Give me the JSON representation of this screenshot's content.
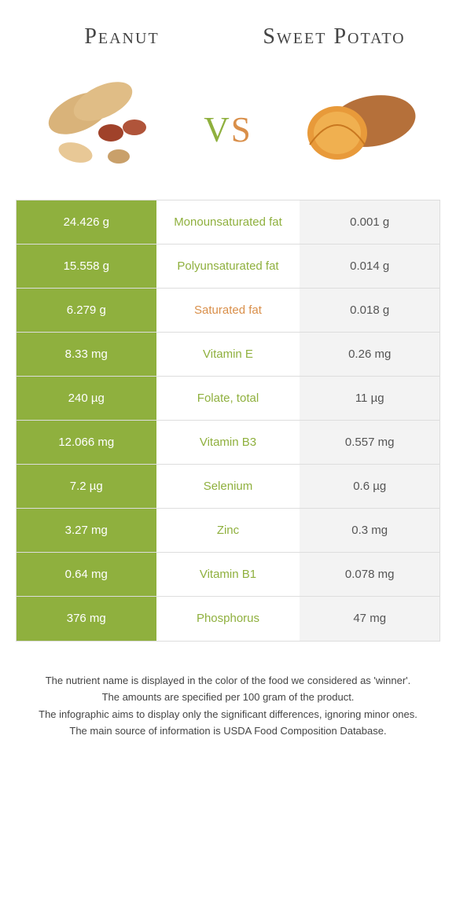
{
  "header": {
    "left_title": "Peanut",
    "right_title": "Sweet Potato",
    "vs_v": "v",
    "vs_s": "s"
  },
  "colors": {
    "peanut": "#8fb03e",
    "sweetpotato": "#d98f4a",
    "right_bg": "#f3f3f3",
    "border": "#dddddd",
    "text": "#444444"
  },
  "table": {
    "rows": [
      {
        "left": "24.426 g",
        "label": "Monounsaturated fat",
        "right": "0.001 g",
        "winner": "left"
      },
      {
        "left": "15.558 g",
        "label": "Polyunsaturated fat",
        "right": "0.014 g",
        "winner": "left"
      },
      {
        "left": "6.279 g",
        "label": "Saturated fat",
        "right": "0.018 g",
        "winner": "right"
      },
      {
        "left": "8.33 mg",
        "label": "Vitamin E",
        "right": "0.26 mg",
        "winner": "left"
      },
      {
        "left": "240 µg",
        "label": "Folate, total",
        "right": "11 µg",
        "winner": "left"
      },
      {
        "left": "12.066 mg",
        "label": "Vitamin B3",
        "right": "0.557 mg",
        "winner": "left"
      },
      {
        "left": "7.2 µg",
        "label": "Selenium",
        "right": "0.6 µg",
        "winner": "left"
      },
      {
        "left": "3.27 mg",
        "label": "Zinc",
        "right": "0.3 mg",
        "winner": "left"
      },
      {
        "left": "0.64 mg",
        "label": "Vitamin B1",
        "right": "0.078 mg",
        "winner": "left"
      },
      {
        "left": "376 mg",
        "label": "Phosphorus",
        "right": "47 mg",
        "winner": "left"
      }
    ]
  },
  "footer": {
    "line1": "The nutrient name is displayed in the color of the food we considered as 'winner'.",
    "line2": "The amounts are specified per 100 gram of the product.",
    "line3": "The infographic aims to display only the significant differences, ignoring minor ones.",
    "line4": "The main source of information is USDA Food Composition Database."
  }
}
